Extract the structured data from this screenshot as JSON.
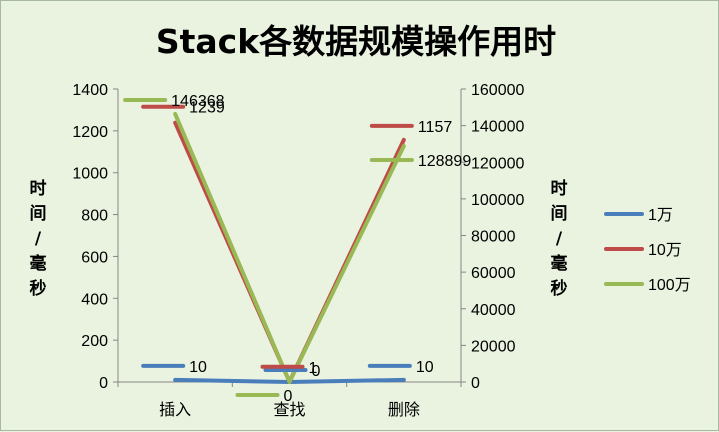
{
  "chart_data": {
    "type": "line",
    "title": "Stack各数据规模操作用时",
    "categories": [
      "插入",
      "查找",
      "删除"
    ],
    "ylabel": "时间/毫秒",
    "y2label": "时间/毫秒",
    "ylim": [
      0,
      1400
    ],
    "yticks": [
      0,
      200,
      400,
      600,
      800,
      1000,
      1200,
      1400
    ],
    "y2lim": [
      0,
      160000
    ],
    "y2ticks": [
      0,
      20000,
      40000,
      60000,
      80000,
      100000,
      120000,
      140000,
      160000
    ],
    "legend_position": "right",
    "series": [
      {
        "name": "1万",
        "axis": "left",
        "color": "#4a7ebb",
        "values": [
          10,
          0,
          10
        ],
        "labels": [
          "10",
          "0",
          "10"
        ]
      },
      {
        "name": "10万",
        "axis": "left",
        "color": "#be4b48",
        "values": [
          1239,
          1,
          1157
        ],
        "labels": [
          "1239",
          "1",
          "1157"
        ]
      },
      {
        "name": "100万",
        "axis": "right",
        "color": "#98b954",
        "values": [
          146368,
          0,
          128899
        ],
        "labels": [
          "146368",
          "0",
          "128899"
        ]
      }
    ]
  }
}
